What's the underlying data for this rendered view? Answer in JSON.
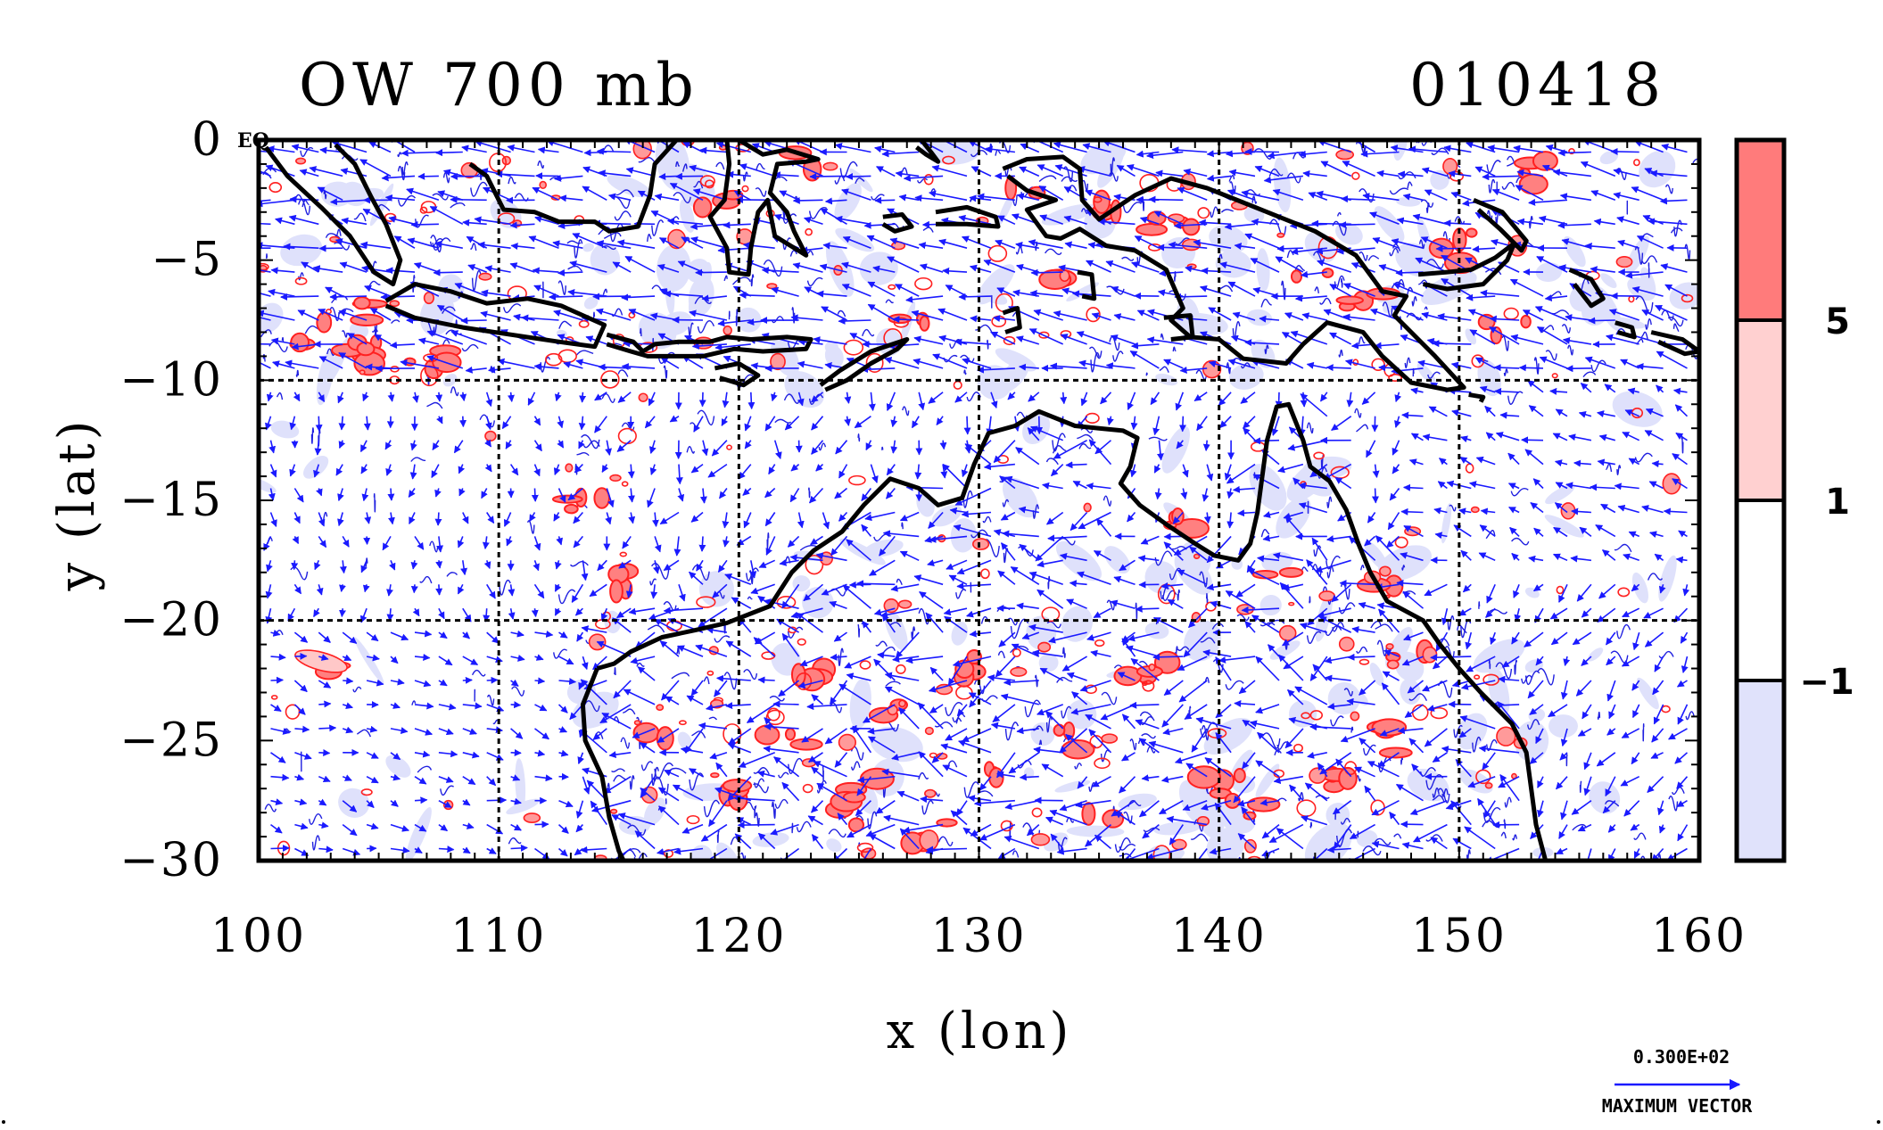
{
  "title_left": "OW 700 mb",
  "title_right": "010418",
  "corner_label": "EQ",
  "x_axis_label": "x (lon)",
  "y_axis_label": "y (lat)",
  "x_ticks": [
    "100",
    "110",
    "120",
    "130",
    "140",
    "150",
    "160"
  ],
  "y_ticks": [
    "0",
    "−5",
    "−10",
    "−15",
    "−20",
    "−25",
    "−30"
  ],
  "colorbar": {
    "labels": [
      "5",
      "1",
      "−1"
    ],
    "colors": [
      "#ff7b7b",
      "#ffd0d0",
      "#ffffff",
      "#e0e2fb"
    ]
  },
  "vector_key": {
    "value": "0.300E+02",
    "label": "MAXIMUM VECTOR"
  },
  "colors": {
    "vector": "#1a1aff",
    "contour_positive": "#ff2020",
    "contour_negative": "#2020e0",
    "coastline": "#000000",
    "grid": "#000000"
  },
  "map_extent": {
    "lon": [
      100,
      160
    ],
    "lat": [
      -30,
      0
    ]
  },
  "grid_lines": {
    "lon": [
      110,
      120,
      130,
      140,
      150
    ],
    "lat": [
      -10,
      -20
    ]
  }
}
